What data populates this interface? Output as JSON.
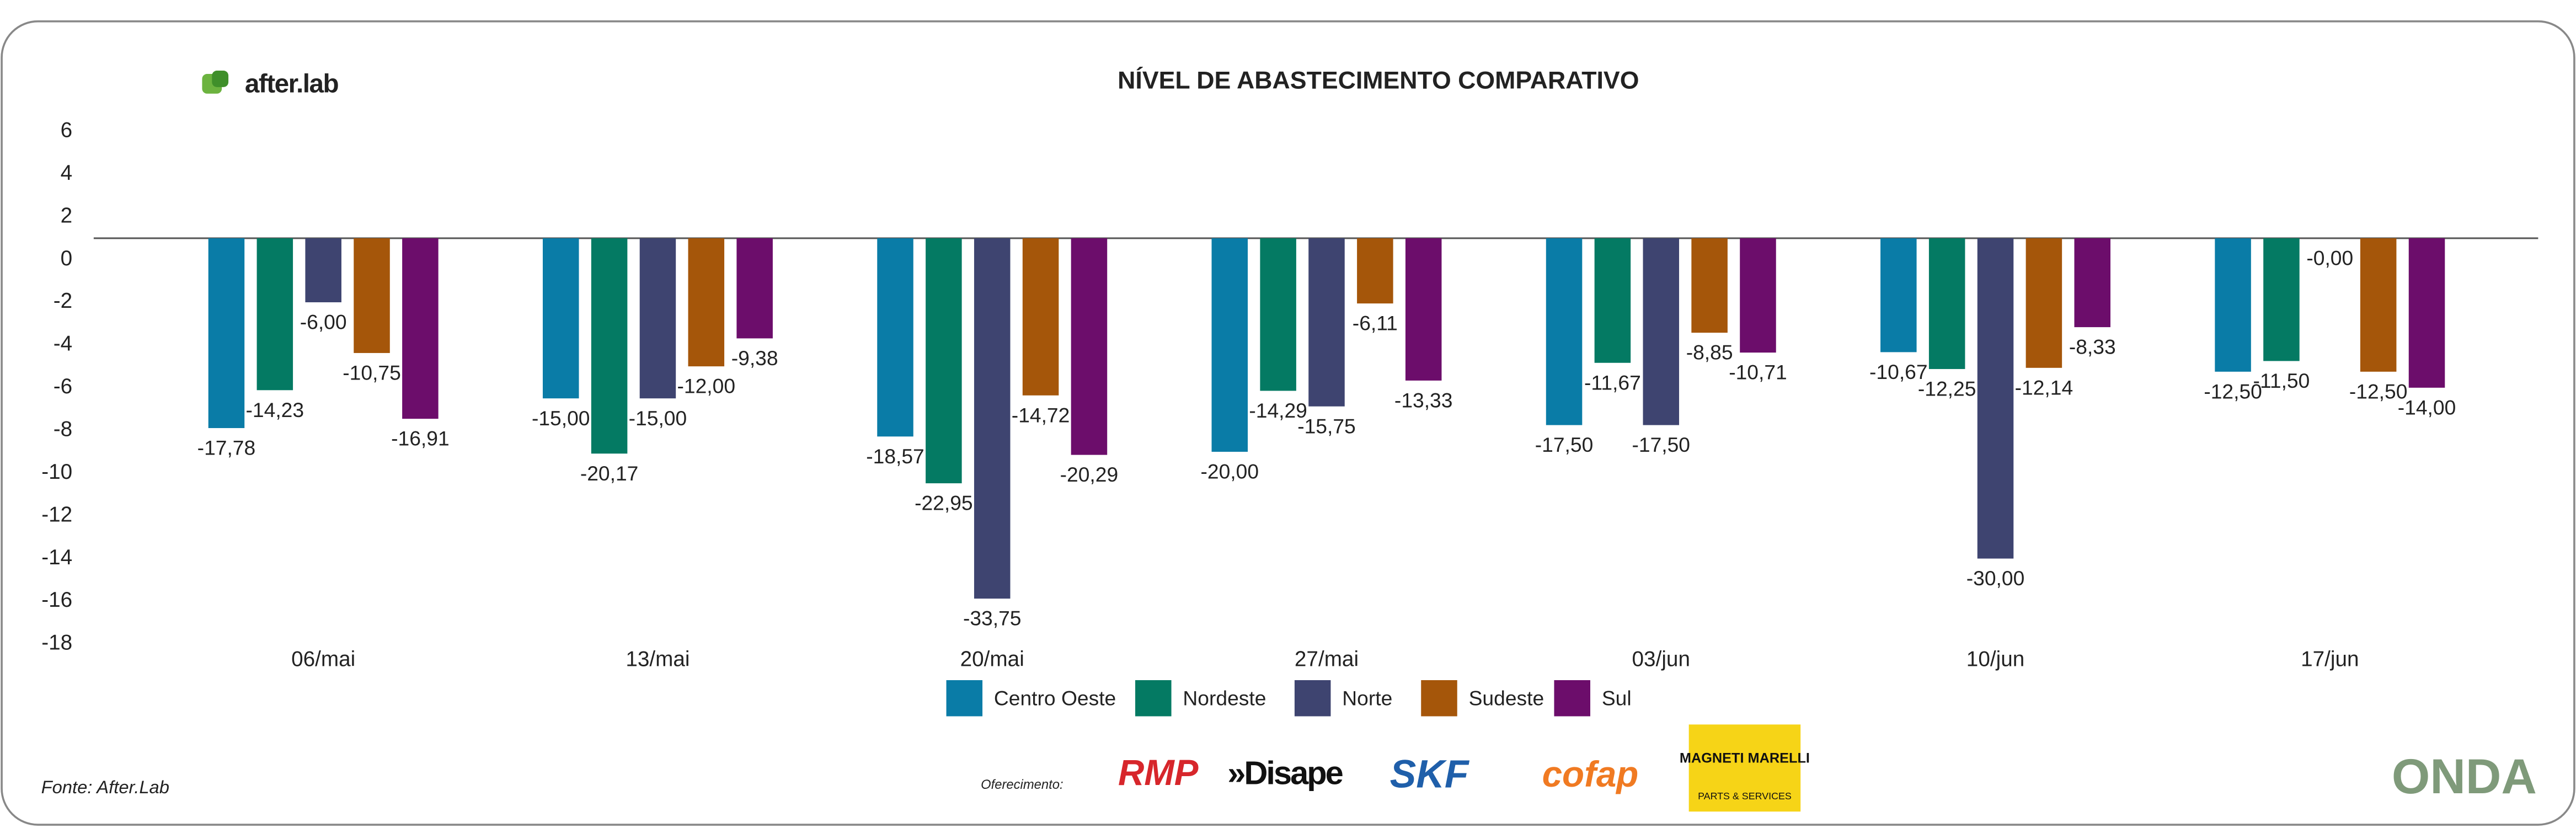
{
  "chart_data": {
    "type": "bar",
    "title": "NÍVEL DE ABASTECIMENTO COMPARATIVO",
    "categories": [
      "06/mai",
      "13/mai",
      "20/mai",
      "27/mai",
      "03/jun",
      "10/jun",
      "17/jun"
    ],
    "series": [
      {
        "name": "Centro Oeste",
        "color": "#0a7ca7",
        "axis": "y2",
        "values": [
          -17.78,
          -15,
          -18.57,
          -20,
          -17.5,
          -10.67,
          -12.5
        ],
        "value_labels": [
          "-17,78",
          "-15,00",
          "-18,57",
          "-20,00",
          "-17,50",
          "-10,67",
          "-12,50"
        ]
      },
      {
        "name": "Nordeste",
        "color": "#047a63",
        "axis": "y2",
        "values": [
          -14.23,
          -20.17,
          -22.95,
          -14.29,
          -11.67,
          -12.25,
          -11.5
        ],
        "value_labels": [
          "-14,23",
          "-20,17",
          "-22,95",
          "-14,29",
          "-11,67",
          "-12,25",
          "-11,50"
        ]
      },
      {
        "name": "Norte",
        "color": "#3e4470",
        "axis": "y2",
        "values": [
          -6,
          -15,
          -33.75,
          -15.75,
          -17.5,
          -30,
          0
        ],
        "value_labels": [
          "-6,00",
          "-15,00",
          "-33,75",
          "-15,75",
          "-17,50",
          "-30,00",
          "-0,00"
        ]
      },
      {
        "name": "Sudeste",
        "color": "#a5560a",
        "axis": "y2",
        "values": [
          -10.75,
          -12,
          -14.72,
          -6.11,
          -8.85,
          -12.14,
          -12.5
        ],
        "value_labels": [
          "-10,75",
          "-12,00",
          "-14,72",
          "-6,11",
          "-8,85",
          "-12,14",
          "-12,50"
        ]
      },
      {
        "name": "Sul",
        "color": "#6c0d6b",
        "axis": "y2",
        "values": [
          -16.91,
          -9.38,
          -20.29,
          -13.33,
          -10.71,
          -8.33,
          -14
        ],
        "value_labels": [
          "-16,91",
          "-9,38",
          "-20,29",
          "-13,33",
          "-10,71",
          "-8,33",
          "-14,00"
        ]
      }
    ],
    "ylim": [
      -18,
      6
    ],
    "yticks": [
      6,
      4,
      2,
      0,
      -2,
      -4,
      -6,
      -8,
      -10,
      -12,
      -14,
      -16,
      -18
    ],
    "y2lim": [
      -38,
      10
    ],
    "legend": "bottom"
  },
  "branding": {
    "logo": "after.lab",
    "source": "Fonte: After.Lab",
    "sponsor_label": "Oferecimento:",
    "sponsors": [
      "RMP",
      "»Disape",
      "SKF",
      "cofap",
      "MAGNETI MARELLI",
      "PARTS & SERVICES"
    ],
    "brand": "ONDA"
  }
}
